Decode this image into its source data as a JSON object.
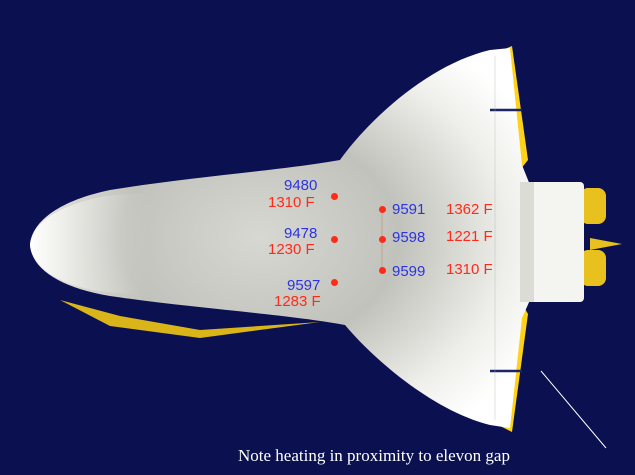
{
  "colors": {
    "background": "#0b1150",
    "sensor_id": "#2b34e0",
    "temperature": "#ff2a1a",
    "wing_edge": "#ffd21a"
  },
  "sensors": [
    {
      "id": "9480",
      "temp": "1310 F"
    },
    {
      "id": "9478",
      "temp": "1230 F"
    },
    {
      "id": "9597",
      "temp": "1283 F"
    },
    {
      "id": "9591",
      "temp": "1362 F"
    },
    {
      "id": "9598",
      "temp": "1221 F"
    },
    {
      "id": "9599",
      "temp": "1310 F"
    }
  ],
  "annotation": {
    "text": "Note heating in proximity to elevon gap"
  }
}
